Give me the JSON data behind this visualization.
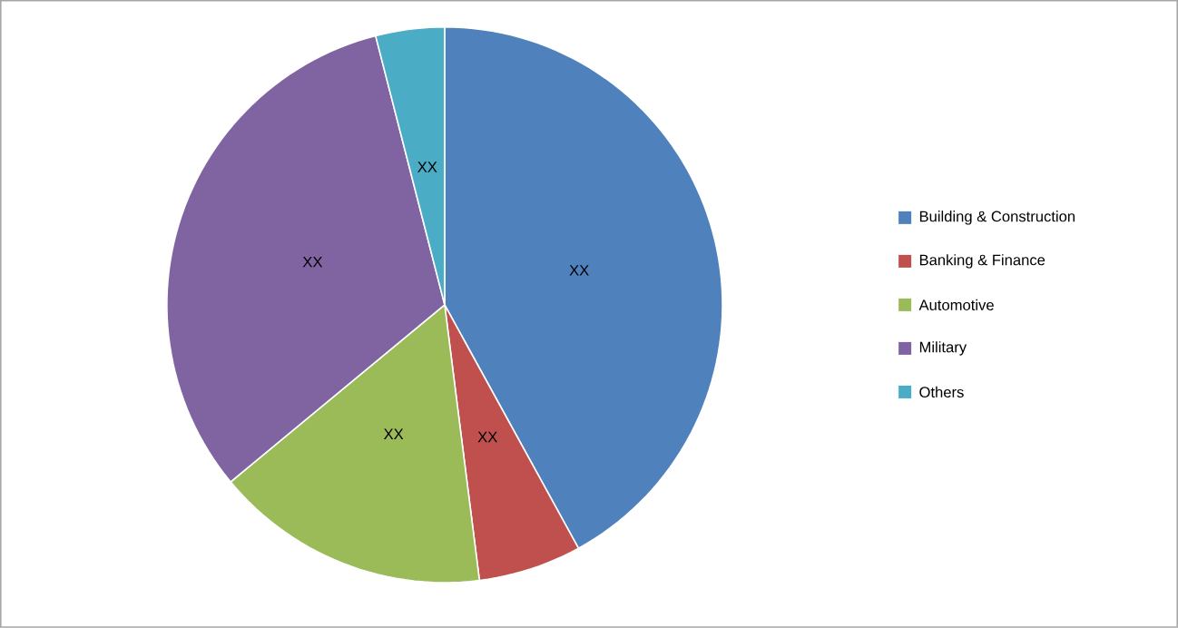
{
  "chart_data": {
    "type": "pie",
    "categories": [
      "Building & Construction",
      "Banking & Finance",
      "Automotive",
      "Military",
      "Others"
    ],
    "values": [
      42,
      6,
      16,
      32,
      4
    ],
    "colors": [
      "#4f81bd",
      "#c0504d",
      "#9bbb59",
      "#8064a2",
      "#4bacc6"
    ],
    "value_labels": [
      "XX",
      "XX",
      "XX",
      "XX",
      "XX"
    ],
    "legend": "right"
  }
}
